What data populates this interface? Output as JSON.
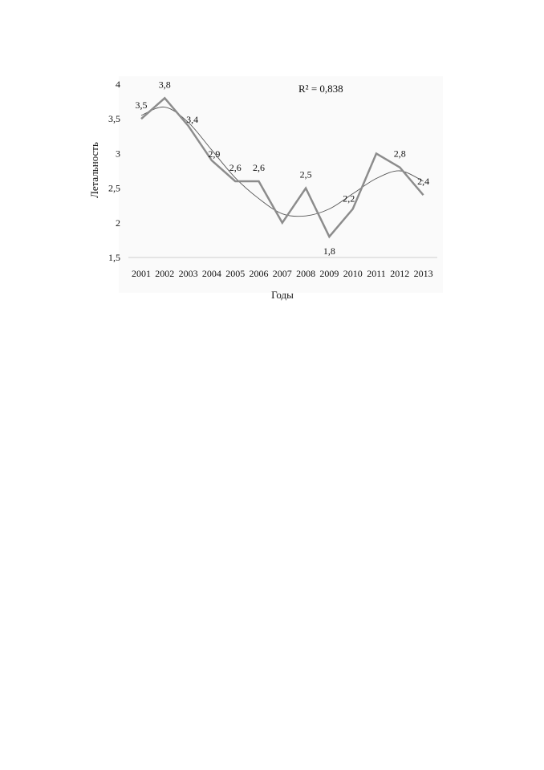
{
  "chart_data": {
    "type": "line",
    "xlabel": "Годы",
    "ylabel": "Летальность",
    "ylim": [
      1.5,
      4
    ],
    "yticks": [
      1.5,
      2,
      2.5,
      3,
      3.5,
      4
    ],
    "ytick_labels": [
      "1,5",
      "2",
      "2,5",
      "3",
      "3,5",
      "4"
    ],
    "categories": [
      "2001",
      "2002",
      "2003",
      "2004",
      "2005",
      "2006",
      "2007",
      "2008",
      "2009",
      "2010",
      "2011",
      "2012",
      "2013"
    ],
    "series": [
      {
        "values": [
          3.5,
          3.8,
          3.4,
          2.9,
          2.6,
          2.6,
          2.0,
          2.5,
          1.8,
          2.2,
          3.0,
          2.8,
          2.4
        ],
        "labels": [
          "3,5",
          "3,8",
          "3,4",
          "2,9",
          "2,6",
          "2,6",
          "",
          "2,5",
          "1,8",
          "2,2",
          "",
          "2,8",
          "2,4"
        ],
        "color": "#8c8c8c"
      }
    ],
    "trendline": {
      "type": "polynomial",
      "values": [
        3.55,
        3.67,
        3.45,
        3.05,
        2.65,
        2.35,
        2.13,
        2.1,
        2.2,
        2.42,
        2.64,
        2.75,
        2.6
      ],
      "color": "#555555",
      "annotation": "R² = 0,838"
    },
    "grid": false,
    "legend": "none"
  }
}
